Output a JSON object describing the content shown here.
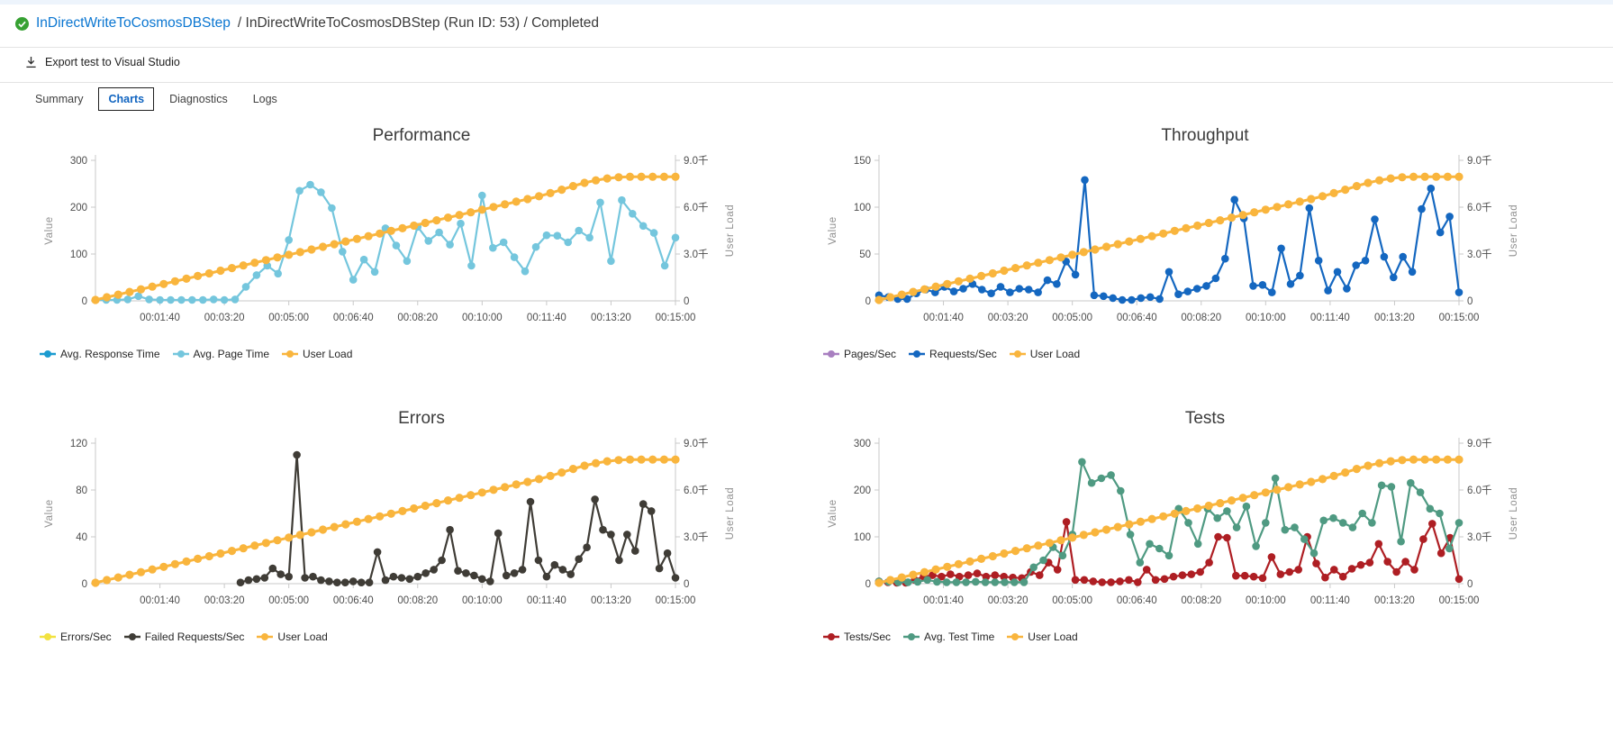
{
  "breadcrumb": {
    "status_icon": "check-circle-icon",
    "link": "InDirectWriteToCosmosDBStep",
    "rest": " / InDirectWriteToCosmosDBStep (Run ID: 53) / Completed"
  },
  "toolbar": {
    "export_label": "Export test to Visual Studio",
    "icon": "download-icon"
  },
  "tabs": [
    {
      "label": "Summary",
      "active": false
    },
    {
      "label": "Charts",
      "active": true
    },
    {
      "label": "Diagnostics",
      "active": false
    },
    {
      "label": "Logs",
      "active": false
    }
  ],
  "colors": {
    "link_blue": "#0a76d1",
    "status_green": "#36a132",
    "axis_gray": "#c9c9c9"
  },
  "chart_data": [
    {
      "type": "line",
      "id": "performance",
      "title": "Performance",
      "xlabel": "",
      "x_ticks": [
        "00:01:40",
        "00:03:20",
        "00:05:00",
        "00:06:40",
        "00:08:20",
        "00:10:00",
        "00:11:40",
        "00:13:20",
        "00:15:00"
      ],
      "left_axis": {
        "label": "Value",
        "ticks": [
          "0",
          "100",
          "200",
          "300"
        ],
        "max": 300
      },
      "right_axis": {
        "label": "User Load",
        "ticks": [
          "0",
          "3.0千",
          "6.0千",
          "9.0千"
        ],
        "max": 9000
      },
      "grid": false,
      "legend_position": "bottom-left",
      "series": [
        {
          "name": "Avg. Response Time",
          "color": "#1b9bd0",
          "axis": "left",
          "values": []
        },
        {
          "name": "Avg. Page Time",
          "color": "#74c6dd",
          "axis": "left",
          "values": [
            2,
            2,
            2,
            3,
            10,
            3,
            2,
            2,
            2,
            2,
            2,
            3,
            2,
            3,
            30,
            55,
            75,
            58,
            130,
            235,
            248,
            232,
            198,
            105,
            45,
            88,
            62,
            155,
            118,
            85,
            158,
            128,
            146,
            120,
            165,
            75,
            225,
            113,
            125,
            93,
            63,
            115,
            140,
            139,
            125,
            150,
            135,
            210,
            85,
            215,
            186,
            160,
            145,
            75,
            135
          ]
        },
        {
          "name": "User Load",
          "color": "#f9b53d",
          "axis": "right",
          "values": [
            60,
            230,
            400,
            570,
            740,
            910,
            1080,
            1250,
            1420,
            1590,
            1760,
            1930,
            2100,
            2270,
            2440,
            2610,
            2780,
            2950,
            3120,
            3290,
            3460,
            3630,
            3800,
            3970,
            4140,
            4310,
            4480,
            4650,
            4820,
            4990,
            5160,
            5330,
            5500,
            5670,
            5840,
            6010,
            6180,
            6350,
            6520,
            6700,
            6900,
            7120,
            7350,
            7560,
            7720,
            7840,
            7915,
            7950,
            7950,
            7950,
            7950,
            7950
          ]
        }
      ]
    },
    {
      "type": "line",
      "id": "throughput",
      "title": "Throughput",
      "xlabel": "",
      "x_ticks": [
        "00:01:40",
        "00:03:20",
        "00:05:00",
        "00:06:40",
        "00:08:20",
        "00:10:00",
        "00:11:40",
        "00:13:20",
        "00:15:00"
      ],
      "left_axis": {
        "label": "Value",
        "ticks": [
          "0",
          "50",
          "100",
          "150"
        ],
        "max": 150
      },
      "right_axis": {
        "label": "User Load",
        "ticks": [
          "0",
          "3.0千",
          "6.0千",
          "9.0千"
        ],
        "max": 9000
      },
      "grid": false,
      "legend_position": "bottom-left",
      "series": [
        {
          "name": "Pages/Sec",
          "color": "#a87fc0",
          "axis": "left",
          "values": []
        },
        {
          "name": "Requests/Sec",
          "color": "#1467c0",
          "axis": "left",
          "values": [
            6,
            4,
            2,
            2,
            8,
            12,
            9,
            15,
            10,
            13,
            18,
            12,
            8,
            15,
            9,
            13,
            12,
            9,
            22,
            18,
            42,
            28,
            129,
            6,
            5,
            3,
            1,
            1,
            3,
            4,
            2,
            31,
            7,
            10,
            13,
            16,
            24,
            45,
            108,
            88,
            16,
            17,
            9,
            56,
            18,
            27,
            99,
            43,
            11,
            31,
            13,
            38,
            43,
            87,
            47,
            25,
            47,
            31,
            98,
            120,
            73,
            90,
            9
          ]
        },
        {
          "name": "User Load",
          "color": "#f9b53d",
          "axis": "right",
          "values": [
            60,
            230,
            400,
            570,
            740,
            910,
            1080,
            1250,
            1420,
            1590,
            1760,
            1930,
            2100,
            2270,
            2440,
            2610,
            2780,
            2950,
            3120,
            3290,
            3460,
            3630,
            3800,
            3970,
            4140,
            4310,
            4480,
            4650,
            4820,
            4990,
            5160,
            5330,
            5500,
            5670,
            5840,
            6010,
            6180,
            6350,
            6520,
            6700,
            6900,
            7120,
            7350,
            7560,
            7720,
            7840,
            7915,
            7950,
            7950,
            7950,
            7950,
            7950
          ]
        }
      ]
    },
    {
      "type": "line",
      "id": "errors",
      "title": "Errors",
      "xlabel": "",
      "x_ticks": [
        "00:01:40",
        "00:03:20",
        "00:05:00",
        "00:06:40",
        "00:08:20",
        "00:10:00",
        "00:11:40",
        "00:13:20",
        "00:15:00"
      ],
      "left_axis": {
        "label": "Value",
        "ticks": [
          "0",
          "40",
          "80",
          "120"
        ],
        "max": 120
      },
      "right_axis": {
        "label": "User Load",
        "ticks": [
          "0",
          "3.0千",
          "6.0千",
          "9.0千"
        ],
        "max": 9000
      },
      "grid": false,
      "legend_position": "bottom-left",
      "series": [
        {
          "name": "Errors/Sec",
          "color": "#f2e240",
          "axis": "left",
          "values": []
        },
        {
          "name": "Failed Requests/Sec",
          "color": "#3f3c36",
          "axis": "left",
          "values": [
            null,
            null,
            null,
            null,
            null,
            null,
            null,
            null,
            null,
            null,
            null,
            null,
            null,
            null,
            null,
            null,
            null,
            null,
            1,
            3,
            4,
            5,
            13,
            8,
            6,
            110,
            5,
            6,
            3,
            2,
            1,
            1,
            2,
            1,
            1,
            27,
            3,
            6,
            5,
            4,
            6,
            9,
            12,
            20,
            46,
            11,
            9,
            7,
            4,
            2,
            43,
            7,
            9,
            12,
            70,
            20,
            6,
            16,
            12,
            8,
            21,
            31,
            72,
            46,
            42,
            20,
            42,
            28,
            68,
            62,
            13,
            26,
            5
          ]
        },
        {
          "name": "User Load",
          "color": "#f9b53d",
          "axis": "right",
          "values": [
            60,
            230,
            400,
            570,
            740,
            910,
            1080,
            1250,
            1420,
            1590,
            1760,
            1930,
            2100,
            2270,
            2440,
            2610,
            2780,
            2950,
            3120,
            3290,
            3460,
            3630,
            3800,
            3970,
            4140,
            4310,
            4480,
            4650,
            4820,
            4990,
            5160,
            5330,
            5500,
            5670,
            5840,
            6010,
            6180,
            6350,
            6520,
            6700,
            6900,
            7120,
            7350,
            7560,
            7720,
            7840,
            7915,
            7950,
            7950,
            7950,
            7950,
            7950
          ]
        }
      ]
    },
    {
      "type": "line",
      "id": "tests",
      "title": "Tests",
      "xlabel": "",
      "x_ticks": [
        "00:01:40",
        "00:03:20",
        "00:05:00",
        "00:06:40",
        "00:08:20",
        "00:10:00",
        "00:11:40",
        "00:13:20",
        "00:15:00"
      ],
      "left_axis": {
        "label": "Value",
        "ticks": [
          "0",
          "100",
          "200",
          "300"
        ],
        "max": 300
      },
      "right_axis": {
        "label": "User Load",
        "ticks": [
          "0",
          "3.0千",
          "6.0千",
          "9.0千"
        ],
        "max": 9000
      },
      "grid": false,
      "legend_position": "bottom-left",
      "series": [
        {
          "name": "Tests/Sec",
          "color": "#ae1e23",
          "axis": "left",
          "values": [
            5,
            3,
            2,
            2,
            8,
            15,
            18,
            15,
            20,
            15,
            18,
            22,
            15,
            18,
            15,
            13,
            12,
            25,
            18,
            45,
            30,
            132,
            8,
            8,
            5,
            3,
            3,
            5,
            8,
            3,
            30,
            8,
            10,
            15,
            18,
            20,
            25,
            45,
            100,
            98,
            17,
            17,
            15,
            12,
            57,
            20,
            25,
            30,
            100,
            43,
            13,
            30,
            15,
            32,
            40,
            45,
            85,
            47,
            25,
            47,
            30,
            95,
            128,
            65,
            98,
            10
          ]
        },
        {
          "name": "Avg. Test Time",
          "color": "#4f9a82",
          "axis": "left",
          "values": [
            5,
            4,
            3,
            3,
            4,
            8,
            4,
            3,
            3,
            3,
            4,
            3,
            3,
            3,
            3,
            3,
            35,
            50,
            78,
            60,
            105,
            260,
            215,
            225,
            232,
            198,
            105,
            45,
            85,
            75,
            60,
            160,
            130,
            85,
            160,
            140,
            155,
            120,
            165,
            80,
            130,
            225,
            115,
            120,
            95,
            65,
            135,
            140,
            130,
            120,
            150,
            130,
            210,
            207,
            90,
            215,
            195,
            160,
            150,
            75,
            130
          ]
        },
        {
          "name": "User Load",
          "color": "#f9b53d",
          "axis": "right",
          "values": [
            60,
            230,
            400,
            570,
            740,
            910,
            1080,
            1250,
            1420,
            1590,
            1760,
            1930,
            2100,
            2270,
            2440,
            2610,
            2780,
            2950,
            3120,
            3290,
            3460,
            3630,
            3800,
            3970,
            4140,
            4310,
            4480,
            4650,
            4820,
            4990,
            5160,
            5330,
            5500,
            5670,
            5840,
            6010,
            6180,
            6350,
            6520,
            6700,
            6900,
            7120,
            7350,
            7560,
            7720,
            7840,
            7915,
            7950,
            7950,
            7950,
            7950,
            7950
          ]
        }
      ]
    }
  ]
}
